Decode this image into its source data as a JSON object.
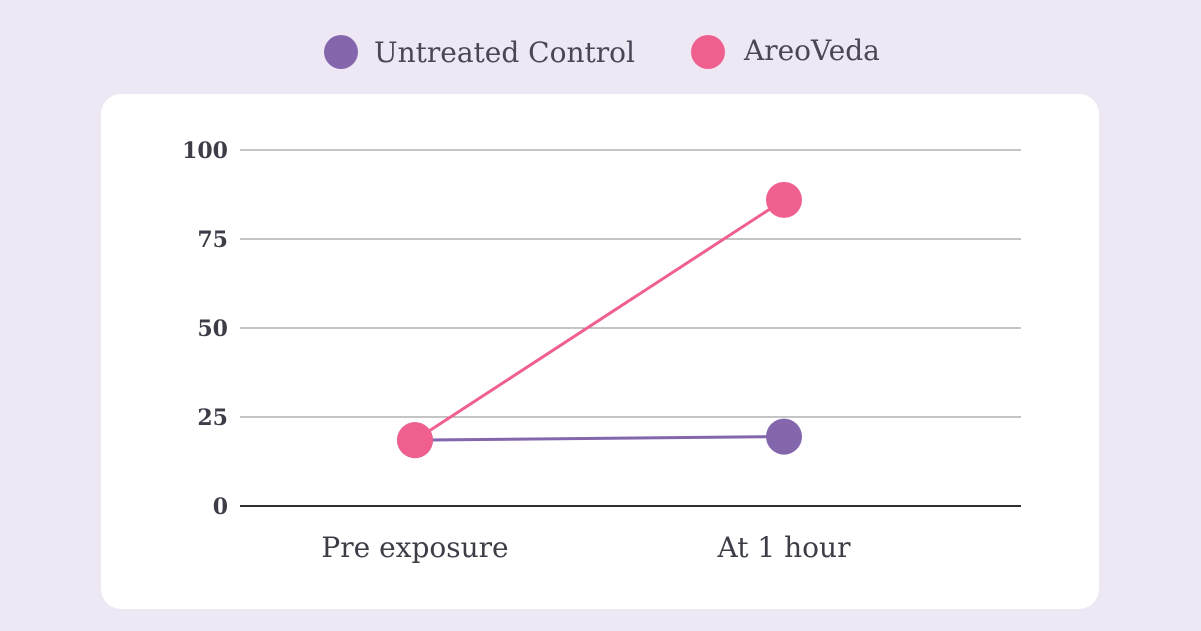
{
  "chart_data": {
    "type": "line",
    "title": "",
    "xlabel": "",
    "ylabel": "",
    "categories": [
      "Pre exposure",
      "At 1 hour"
    ],
    "series": [
      {
        "name": "Untreated Control",
        "values": [
          18.5,
          19.5
        ],
        "color": "#8466ad"
      },
      {
        "name": "AreoVeda",
        "values": [
          18.5,
          86
        ],
        "color": "#f0608e"
      }
    ],
    "ylim": [
      0,
      100
    ],
    "yticks": [
      0,
      25,
      50,
      75,
      100
    ],
    "grid": true,
    "legend_position": "top-center"
  },
  "colors": {
    "page_background": "#eee7f4",
    "card_background": "#ffffff",
    "gridline": "#8a8a8a",
    "axis_text": "#3f3c48"
  }
}
